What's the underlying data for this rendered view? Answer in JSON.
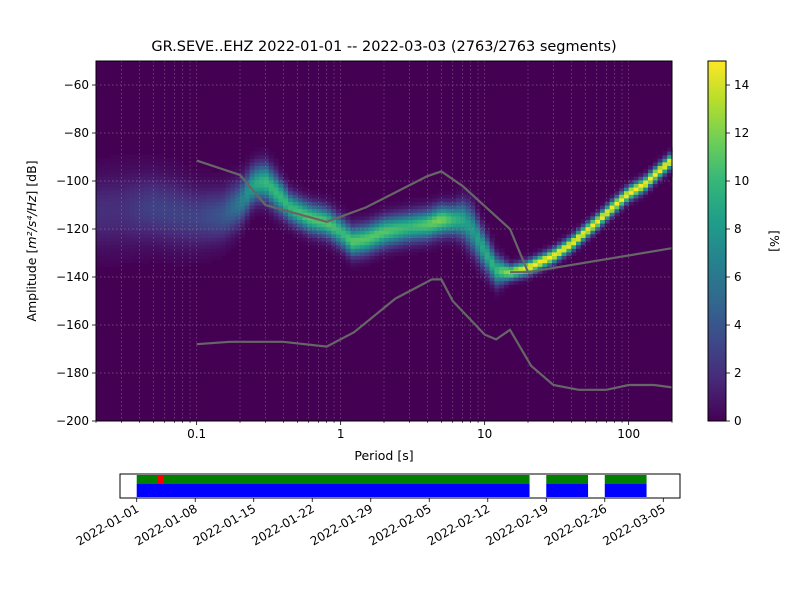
{
  "chart_data": [
    {
      "type": "heatmap",
      "title": "GR.SEVE..EHZ   2022-01-01 -- 2022-03-03  (2763/2763 segments)",
      "xlabel": "Period [s]",
      "ylabel_prefix": "Amplitude [",
      "ylabel_unit": "m²/s⁴/Hz",
      "ylabel_suffix": "] [dB]",
      "x_scale": "log",
      "xlim": [
        0.02,
        200
      ],
      "ylim": [
        -200,
        -50
      ],
      "x_ticks": [
        {
          "value": 0.1,
          "label": "0.1"
        },
        {
          "value": 1,
          "label": "1"
        },
        {
          "value": 10,
          "label": "10"
        },
        {
          "value": 100,
          "label": "100"
        }
      ],
      "y_ticks": [
        {
          "value": -60,
          "label": "−60"
        },
        {
          "value": -80,
          "label": "−80"
        },
        {
          "value": -100,
          "label": "−100"
        },
        {
          "value": -120,
          "label": "−120"
        },
        {
          "value": -140,
          "label": "−140"
        },
        {
          "value": -160,
          "label": "−160"
        },
        {
          "value": -180,
          "label": "−180"
        },
        {
          "value": -200,
          "label": "−200"
        }
      ],
      "grid": true,
      "colorbar": {
        "label": "[%]",
        "range": [
          0,
          15
        ],
        "ticks": [
          {
            "value": 0,
            "label": "0"
          },
          {
            "value": 2,
            "label": "2"
          },
          {
            "value": 4,
            "label": "4"
          },
          {
            "value": 6,
            "label": "6"
          },
          {
            "value": 8,
            "label": "8"
          },
          {
            "value": 10,
            "label": "10"
          },
          {
            "value": 12,
            "label": "12"
          },
          {
            "value": 14,
            "label": "14"
          }
        ],
        "colormap": [
          "#440154",
          "#482878",
          "#3e4989",
          "#31688e",
          "#26828e",
          "#1f9e89",
          "#35b779",
          "#6ece58",
          "#b5de2b",
          "#fde725"
        ]
      },
      "density_ridge": {
        "period": [
          0.02,
          0.03,
          0.05,
          0.07,
          0.1,
          0.15,
          0.2,
          0.25,
          0.3,
          0.35,
          0.45,
          0.6,
          0.8,
          1.0,
          1.2,
          1.5,
          2.0,
          3.0,
          4.0,
          5.0,
          6.0,
          7.0,
          8.0,
          10,
          12,
          15,
          20,
          30,
          40,
          60,
          80,
          100,
          130,
          160,
          200
        ],
        "amplitude_db": [
          -113,
          -112,
          -111,
          -113,
          -115,
          -114,
          -109,
          -101,
          -100,
          -104,
          -111,
          -115,
          -117,
          -121,
          -125,
          -124,
          -121,
          -119,
          -118,
          -116,
          -116,
          -116,
          -119,
          -129,
          -137,
          -138,
          -136,
          -131,
          -126,
          -117,
          -110,
          -105,
          -101,
          -96,
          -91
        ],
        "peak_percent": [
          2,
          2,
          3,
          3,
          3,
          4,
          6,
          9,
          10,
          10,
          10,
          11,
          11,
          10,
          11,
          11,
          11,
          10,
          11,
          12,
          10,
          9,
          8,
          9,
          10,
          13,
          15,
          15,
          15,
          15,
          15,
          15,
          15,
          15,
          15
        ],
        "spread_db": [
          10,
          10,
          9,
          9,
          8,
          7,
          6,
          5,
          5,
          5,
          4,
          4,
          4,
          4,
          4,
          4,
          4,
          4,
          4,
          4,
          4,
          5,
          6,
          5,
          4,
          2,
          2,
          2,
          2,
          2,
          2,
          2,
          2,
          2,
          2
        ]
      },
      "series": [
        {
          "color": "#666666",
          "period": [
            0.1,
            0.2,
            0.3,
            0.8,
            1.5,
            4,
            5,
            7,
            15,
            20
          ],
          "values": [
            -91.5,
            -97.5,
            -110,
            -117,
            -111,
            -98,
            -96,
            -102,
            -120,
            -138
          ]
        },
        {
          "color": "#666666",
          "period": [
            15,
            20,
            200
          ],
          "values": [
            -138,
            -138,
            -128
          ]
        },
        {
          "color": "#666666",
          "period": [
            0.1,
            0.17,
            0.4,
            0.8,
            1.24,
            2.4,
            4.3,
            5,
            6,
            10,
            12,
            15,
            21,
            30,
            45,
            70,
            100,
            150,
            200
          ],
          "values": [
            -168,
            -167,
            -167,
            -169,
            -163,
            -149,
            -141,
            -141,
            -150,
            -164,
            -166,
            -162,
            -177,
            -185,
            -187,
            -187,
            -185,
            -185,
            -186
          ]
        }
      ]
    },
    {
      "type": "timeline",
      "xlim": [
        "2021-12-30",
        "2022-03-07"
      ],
      "x_ticks": [
        "2022-01-01",
        "2022-01-08",
        "2022-01-15",
        "2022-01-22",
        "2022-01-29",
        "2022-02-05",
        "2022-02-12",
        "2022-02-19",
        "2022-02-26",
        "2022-03-05"
      ],
      "coverage_color": "#0000ff",
      "used_color": "#008000",
      "gap_color": "#ff0000",
      "coverage_segments": [
        [
          "2022-01-01",
          "2022-02-17"
        ],
        [
          "2022-02-19",
          "2022-02-24"
        ],
        [
          "2022-02-26",
          "2022-03-03"
        ]
      ],
      "gaps": [
        [
          "2022-01-03T12:00",
          "2022-01-04T06:00"
        ]
      ]
    }
  ]
}
